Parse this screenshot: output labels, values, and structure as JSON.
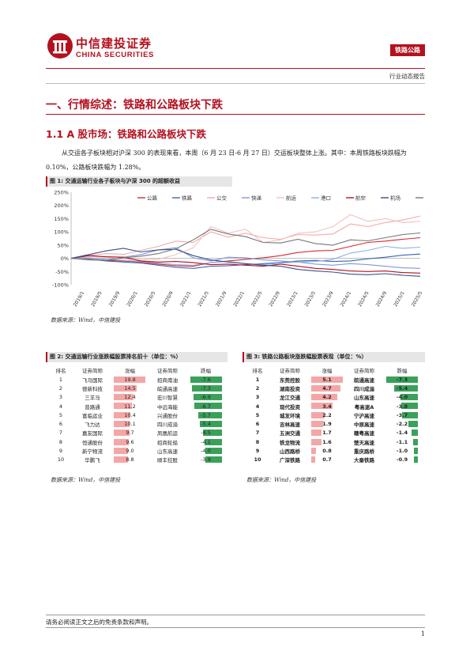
{
  "header": {
    "brand_cn": "中信建投证券",
    "brand_en": "CHINA SECURITIES",
    "tag": "铁路公路",
    "subtag": "行业动态报告"
  },
  "section": {
    "h1": "一、行情综述：铁路和公路板块下跌",
    "h2": "1.1 A 股市场：铁路和公路板块下跌",
    "para": "从交运各子板块相对沪深 300 的表现来看，本周（6 月 23 日-6 月 27 日）交运板块整体上涨。其中：本周铁路板块跌幅为 0.10%，公路板块跌幅为 1.28%。"
  },
  "figure1": {
    "title": "图 1: 交通运输行业各子板块与沪深 300 的超额收益",
    "source": "数据来源：Wind，中信建投"
  },
  "figure2": {
    "title": "图 2: 交通运输行业涨跌幅股票排名前十（单位：%）",
    "source": "数据来源：Wind，中信建投",
    "headers": [
      "排名",
      "证券简称",
      "涨幅",
      "证券简称",
      "跌幅"
    ],
    "rows": [
      {
        "rank": "1",
        "up_name": "飞马国际",
        "up": "19.8",
        "down_name": "招商南油",
        "down": "-7.6"
      },
      {
        "rank": "2",
        "up_name": "德新科技",
        "up": "14.5",
        "down_name": "皖通高速",
        "down": "-7.3"
      },
      {
        "rank": "3",
        "up_name": "三羊马",
        "up": "12.4",
        "down_name": "宏川智慧",
        "down": "-6.9"
      },
      {
        "rank": "4",
        "up_name": "普路通",
        "up": "11.2",
        "down_name": "中远海能",
        "down": "-6.7"
      },
      {
        "rank": "5",
        "up_name": "富临运业",
        "up": "10.4",
        "down_name": "兴通股份",
        "down": "-5.7"
      },
      {
        "rank": "6",
        "up_name": "飞力达",
        "up": "10.1",
        "down_name": "四川成渝",
        "down": "-5.4"
      },
      {
        "rank": "7",
        "up_name": "嘉友国际",
        "up": "9.7",
        "down_name": "凤凰航运",
        "down": "-4.5"
      },
      {
        "rank": "8",
        "up_name": "恒通股份",
        "up": "9.6",
        "down_name": "招商轮船",
        "down": "-4.1"
      },
      {
        "rank": "9",
        "up_name": "新宁物流",
        "up": "9.0",
        "down_name": "山东高速",
        "down": "-4.0"
      },
      {
        "rank": "10",
        "up_name": "华鹏飞",
        "up": "8.8",
        "down_name": "顺丰控股",
        "down": "-3.9"
      }
    ]
  },
  "figure3": {
    "title": "图 3: 铁路公路板块涨跌幅股票表现（单位：%）",
    "source": "数据来源：Wind，中信建投",
    "headers": [
      "排名",
      "证券简称",
      "涨幅",
      "证券简称",
      "跌幅"
    ],
    "rows": [
      {
        "rank": "1",
        "up_name": "东莞控股",
        "up": "5.1",
        "down_name": "皖通高速",
        "down": "-7.3"
      },
      {
        "rank": "2",
        "up_name": "湖南投资",
        "up": "4.7",
        "down_name": "四川成渝",
        "down": "-5.4"
      },
      {
        "rank": "3",
        "up_name": "龙江交通",
        "up": "4.2",
        "down_name": "山东高速",
        "down": "-4.0"
      },
      {
        "rank": "4",
        "up_name": "现代投资",
        "up": "3.4",
        "down_name": "粤高速A",
        "down": "-3.8"
      },
      {
        "rank": "5",
        "up_name": "城发环境",
        "up": "2.2",
        "down_name": "宁沪高速",
        "down": "-3.7"
      },
      {
        "rank": "6",
        "up_name": "吉林高速",
        "up": "1.9",
        "down_name": "中原高速",
        "down": "-2.2"
      },
      {
        "rank": "7",
        "up_name": "五洲交通",
        "up": "1.7",
        "down_name": "赣粤高速",
        "down": "-1.4"
      },
      {
        "rank": "8",
        "up_name": "铁龙物流",
        "up": "1.6",
        "down_name": "楚天高速",
        "down": "-1.1"
      },
      {
        "rank": "9",
        "up_name": "山西路桥",
        "up": "0.8",
        "down_name": "重庆路桥",
        "down": "-1.0"
      },
      {
        "rank": "10",
        "up_name": "广深铁路",
        "up": "0.7",
        "down_name": "大秦铁路",
        "down": "-0.9"
      }
    ]
  },
  "colors": {
    "brand": "#b4111f",
    "up_bar": "#f4a6a6",
    "down_bar": "#3aa15a"
  },
  "footer": {
    "disclaimer": "请务必阅读正文之后的免责条款和声明。",
    "page": "1"
  },
  "chart_data": {
    "type": "line",
    "title": "",
    "ylim": [
      -100,
      250
    ],
    "y_ticks": [
      "250%",
      "200%",
      "150%",
      "100%",
      "50%",
      "0%",
      "-50%",
      "-100%"
    ],
    "x_ticks": [
      "2019/1",
      "2019/5",
      "2019/9",
      "2020/1",
      "2020/5",
      "2020/9",
      "2021/1",
      "2021/5",
      "2021/9",
      "2022/1",
      "2022/5",
      "2022/9",
      "2023/1",
      "2023/5",
      "2023/9",
      "2024/1",
      "2024/5",
      "2024/9",
      "2025/1",
      "2025/5"
    ],
    "x": [
      "2019/1",
      "2019/5",
      "2019/9",
      "2020/1",
      "2020/5",
      "2020/9",
      "2021/1",
      "2021/5",
      "2021/9",
      "2022/1",
      "2022/5",
      "2022/9",
      "2023/1",
      "2023/5",
      "2023/9",
      "2024/1",
      "2024/5",
      "2024/9",
      "2025/1",
      "2025/5",
      "2025/6"
    ],
    "legend_position": "top",
    "series": [
      {
        "name": "公路",
        "color": "#d9262f",
        "values": [
          0,
          -2,
          -8,
          -10,
          -14,
          -22,
          -28,
          -30,
          -16,
          -10,
          -4,
          2,
          10,
          22,
          28,
          30,
          45,
          60,
          65,
          72,
          78
        ]
      },
      {
        "name": "铁路",
        "color": "#3a66b0",
        "values": [
          0,
          -3,
          -10,
          -14,
          -18,
          -26,
          -34,
          -38,
          -30,
          -28,
          -24,
          -20,
          -16,
          -10,
          -8,
          -12,
          -10,
          -2,
          4,
          12,
          16
        ]
      },
      {
        "name": "公交",
        "color": "#f4a8a8",
        "values": [
          0,
          10,
          18,
          15,
          30,
          45,
          65,
          60,
          100,
          80,
          95,
          78,
          72,
          90,
          88,
          92,
          130,
          120,
          135,
          145,
          160
        ]
      },
      {
        "name": "快递",
        "color": "#7f97d8",
        "values": [
          0,
          -4,
          -6,
          4,
          14,
          32,
          40,
          2,
          -10,
          4,
          2,
          -6,
          -10,
          -14,
          -22,
          -26,
          -20,
          -24,
          -30,
          -36,
          -38
        ]
      },
      {
        "name": "航运",
        "color": "#f1c1c1",
        "values": [
          0,
          6,
          4,
          -2,
          -6,
          -4,
          14,
          40,
          120,
          95,
          110,
          60,
          70,
          95,
          100,
          120,
          165,
          140,
          150,
          135,
          140
        ]
      },
      {
        "name": "港口",
        "color": "#8fb0e4",
        "values": [
          0,
          2,
          -4,
          -8,
          -12,
          -18,
          -24,
          -26,
          -16,
          -12,
          -20,
          -24,
          -18,
          -14,
          -12,
          -4,
          20,
          30,
          45,
          38,
          42
        ]
      },
      {
        "name": "航空",
        "color": "#b01217",
        "values": [
          0,
          10,
          6,
          4,
          -10,
          -14,
          -12,
          -16,
          -24,
          -22,
          -26,
          -30,
          -22,
          -30,
          -38,
          -42,
          -48,
          -50,
          -48,
          -54,
          -56
        ]
      },
      {
        "name": "机场",
        "color": "#3c4d8c",
        "values": [
          0,
          14,
          28,
          38,
          24,
          32,
          34,
          10,
          -6,
          -14,
          -20,
          -26,
          -30,
          -42,
          -48,
          -52,
          -60,
          -62,
          -58,
          -64,
          -68
        ]
      },
      {
        "name": "物流综合",
        "color": "#777777",
        "values": [
          0,
          -6,
          -8,
          2,
          8,
          18,
          36,
          70,
          110,
          92,
          82,
          60,
          58,
          72,
          56,
          50,
          70,
          66,
          78,
          90,
          96
        ]
      }
    ]
  }
}
